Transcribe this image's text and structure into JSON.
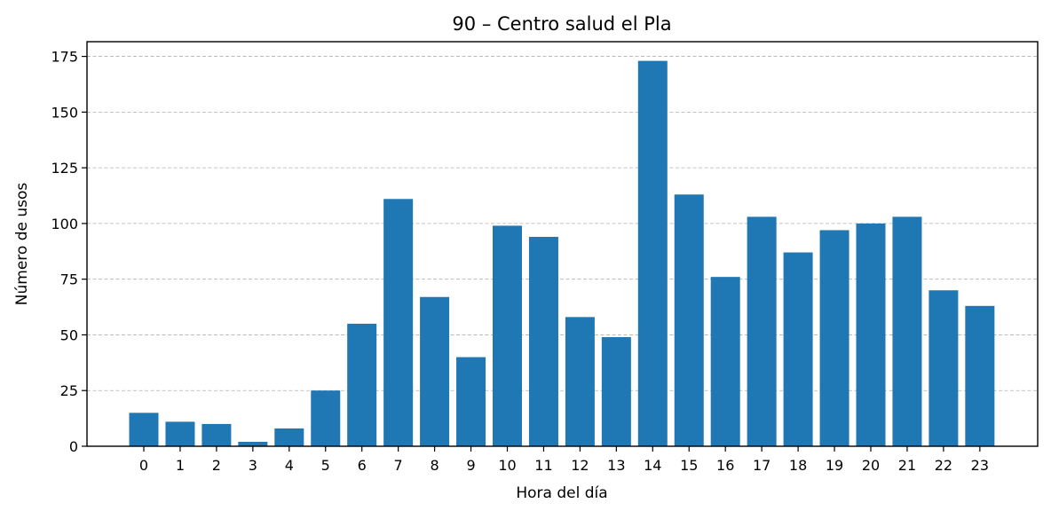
{
  "chart_data": {
    "type": "bar",
    "title": "90 – Centro salud el Pla",
    "xlabel": "Hora del día",
    "ylabel": "Número de usos",
    "categories": [
      "0",
      "1",
      "2",
      "3",
      "4",
      "5",
      "6",
      "7",
      "8",
      "9",
      "10",
      "11",
      "12",
      "13",
      "14",
      "15",
      "16",
      "17",
      "18",
      "19",
      "20",
      "21",
      "22",
      "23"
    ],
    "values": [
      15,
      11,
      10,
      2,
      8,
      25,
      55,
      111,
      67,
      40,
      99,
      94,
      58,
      49,
      173,
      113,
      76,
      103,
      87,
      97,
      100,
      103,
      70,
      63
    ],
    "yticks": [
      0,
      25,
      50,
      75,
      100,
      125,
      150,
      175
    ],
    "ylim": [
      0,
      181.6
    ],
    "grid": "y-dashed",
    "bar_color": "#1f77b4"
  }
}
